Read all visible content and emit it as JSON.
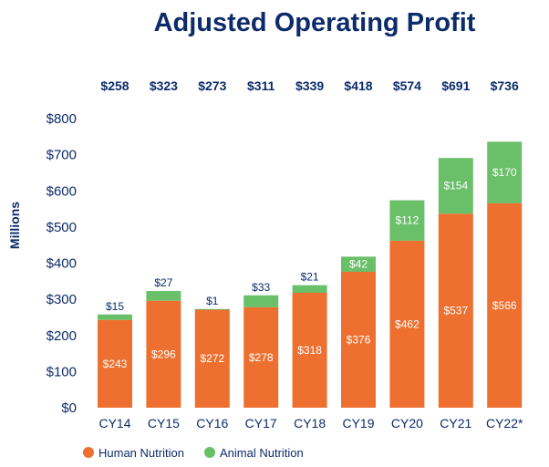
{
  "chart_data": {
    "type": "bar",
    "stacked": true,
    "title": "Adjusted Operating Profit",
    "ylabel": "Millions",
    "categories": [
      "CY14",
      "CY15",
      "CY16",
      "CY17",
      "CY18",
      "CY19",
      "CY20",
      "CY21",
      "CY22*"
    ],
    "series": [
      {
        "name": "Human Nutrition",
        "color": "#ed7030",
        "values": [
          243,
          296,
          272,
          278,
          318,
          376,
          462,
          537,
          566
        ],
        "labels": [
          "$243",
          "$296",
          "$272",
          "$278",
          "$318",
          "$376",
          "$462",
          "$537",
          "$566"
        ]
      },
      {
        "name": "Animal Nutrition",
        "color": "#6abf69",
        "values": [
          15,
          27,
          1,
          33,
          21,
          42,
          112,
          154,
          170
        ],
        "labels": [
          "$15",
          "$27",
          "$1",
          "$33",
          "$21",
          "$42",
          "$112",
          "$154",
          "$170"
        ]
      }
    ],
    "totals": [
      258,
      323,
      273,
      311,
      339,
      418,
      574,
      691,
      736
    ],
    "total_labels": [
      "$258",
      "$323",
      "$273",
      "$311",
      "$339",
      "$418",
      "$574",
      "$691",
      "$736"
    ],
    "ylim": [
      0,
      800
    ],
    "yticks": [
      0,
      100,
      200,
      300,
      400,
      500,
      600,
      700,
      800
    ],
    "ytick_labels": [
      "$0",
      "$100",
      "$200",
      "$300",
      "$400",
      "$500",
      "$600",
      "$700",
      "$800"
    ],
    "grid": false,
    "legend_position": "bottom-left"
  }
}
